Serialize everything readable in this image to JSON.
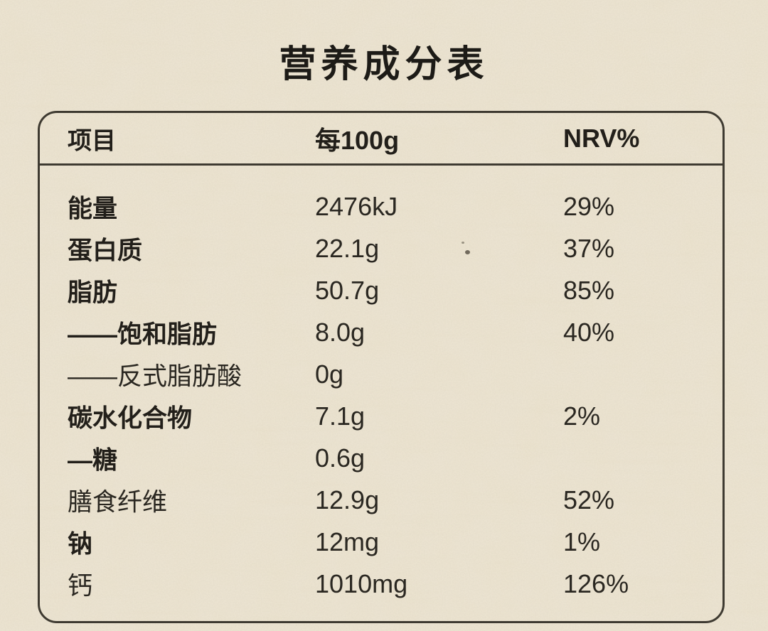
{
  "title": "营养成分表",
  "colors": {
    "paper": "#ebe3d1",
    "ink": "#23211c",
    "border": "#3e3a31"
  },
  "table": {
    "headers": [
      "项目",
      "每100g",
      "NRV%"
    ],
    "rows": [
      {
        "label": "能量",
        "value": "2476kJ",
        "nrv": "29%",
        "bold": true
      },
      {
        "label": "蛋白质",
        "value": "22.1g",
        "nrv": "37%",
        "bold": true
      },
      {
        "label": "脂肪",
        "value": "50.7g",
        "nrv": "85%",
        "bold": true
      },
      {
        "label": "——饱和脂肪",
        "value": "8.0g",
        "nrv": "40%",
        "bold": true
      },
      {
        "label": "——反式脂肪酸",
        "value": "0g",
        "nrv": "",
        "bold": false
      },
      {
        "label": "碳水化合物",
        "value": "7.1g",
        "nrv": "2%",
        "bold": true
      },
      {
        "label": "—糖",
        "value": "0.6g",
        "nrv": "",
        "bold": true
      },
      {
        "label": "膳食纤维",
        "value": "12.9g",
        "nrv": "52%",
        "bold": false
      },
      {
        "label": "钠",
        "value": "12mg",
        "nrv": "1%",
        "bold": true
      },
      {
        "label": "钙",
        "value": "1010mg",
        "nrv": "126%",
        "bold": false
      }
    ]
  }
}
